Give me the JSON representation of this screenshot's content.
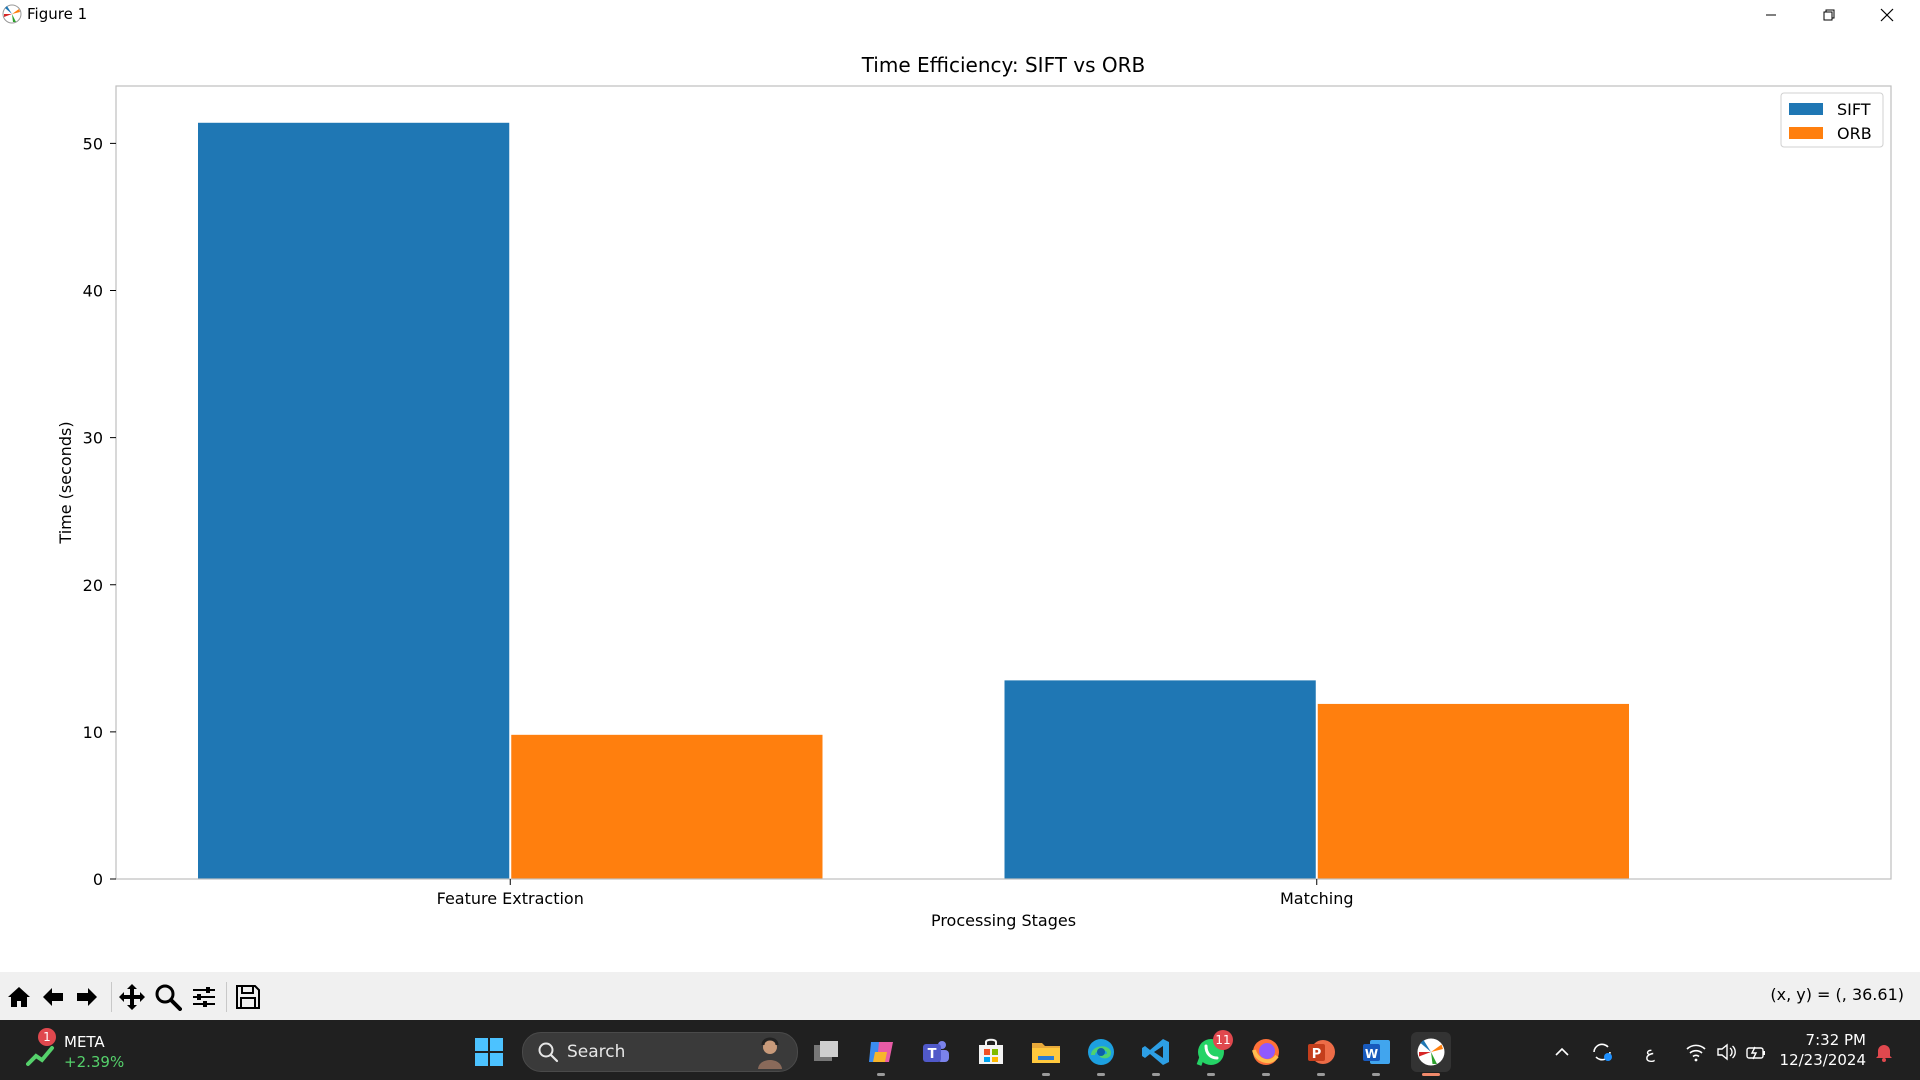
{
  "window": {
    "title": "Figure 1"
  },
  "chart_data": {
    "type": "bar",
    "title": "Time Efficiency: SIFT vs ORB",
    "xlabel": "Processing Stages",
    "ylabel": "Time (seconds)",
    "categories": [
      "Feature Extraction",
      "Matching"
    ],
    "series": [
      {
        "name": "SIFT",
        "color": "#1f77b4",
        "values": [
          51.4,
          13.5
        ]
      },
      {
        "name": "ORB",
        "color": "#ff7f0e",
        "values": [
          9.8,
          11.9
        ]
      }
    ],
    "ylim": [
      0,
      53.9
    ],
    "yticks": [
      0,
      10,
      20,
      30,
      40,
      50
    ],
    "legend": "top-right",
    "grid": false
  },
  "toolbar": {
    "coords": "(x, y) = (, 36.61)",
    "buttons": [
      "home-icon",
      "back-icon",
      "forward-icon",
      "pan-icon",
      "zoom-icon",
      "configure-icon",
      "save-icon"
    ]
  },
  "taskbar": {
    "ticker": {
      "badge": "1",
      "name": "META",
      "change": "+2.39%"
    },
    "search_label": "Search",
    "whatsapp_badge": "11",
    "ime": "ع",
    "time": "7:32 PM",
    "date": "12/23/2024"
  }
}
